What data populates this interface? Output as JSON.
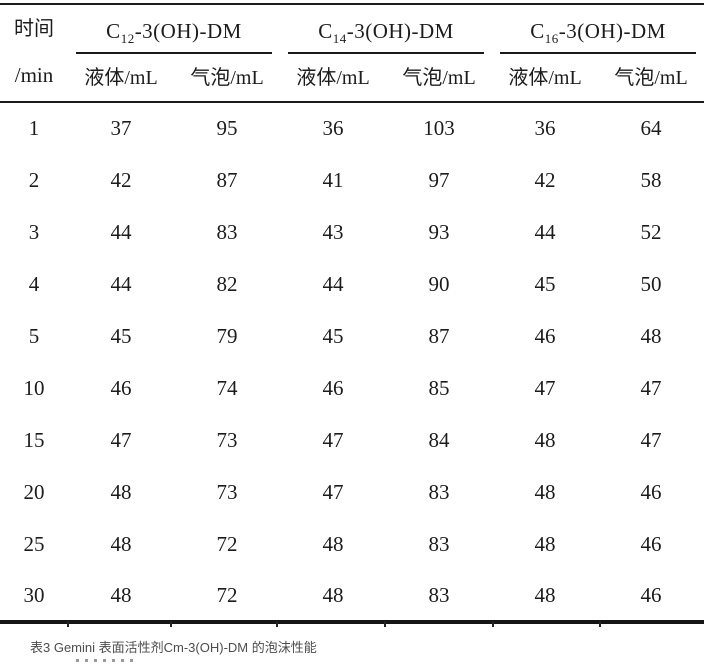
{
  "table": {
    "time_header": {
      "line1": "时间",
      "line2": "/min"
    },
    "groups": [
      {
        "prefix": "C",
        "sub": "12",
        "suffix": "-3(OH)-DM"
      },
      {
        "prefix": "C",
        "sub": "14",
        "suffix": "-3(OH)-DM"
      },
      {
        "prefix": "C",
        "sub": "16",
        "suffix": "-3(OH)-DM"
      }
    ],
    "subheaders": [
      "液体/mL",
      "气泡/mL",
      "液体/mL",
      "气泡/mL",
      "液体/mL",
      "气泡/mL"
    ],
    "rows": [
      [
        "1",
        "37",
        "95",
        "36",
        "103",
        "36",
        "64"
      ],
      [
        "2",
        "42",
        "87",
        "41",
        "97",
        "42",
        "58"
      ],
      [
        "3",
        "44",
        "83",
        "43",
        "93",
        "44",
        "52"
      ],
      [
        "4",
        "44",
        "82",
        "44",
        "90",
        "45",
        "50"
      ],
      [
        "5",
        "45",
        "79",
        "45",
        "87",
        "46",
        "48"
      ],
      [
        "10",
        "46",
        "74",
        "46",
        "85",
        "47",
        "47"
      ],
      [
        "15",
        "47",
        "73",
        "47",
        "84",
        "48",
        "47"
      ],
      [
        "20",
        "48",
        "73",
        "47",
        "83",
        "48",
        "46"
      ],
      [
        "25",
        "48",
        "72",
        "48",
        "83",
        "48",
        "46"
      ],
      [
        "30",
        "48",
        "72",
        "48",
        "83",
        "48",
        "46"
      ]
    ]
  },
  "caption": {
    "text": "表3 Gemini 表面活性剂Cm-3(OH)-DM 的泡沫性能"
  }
}
